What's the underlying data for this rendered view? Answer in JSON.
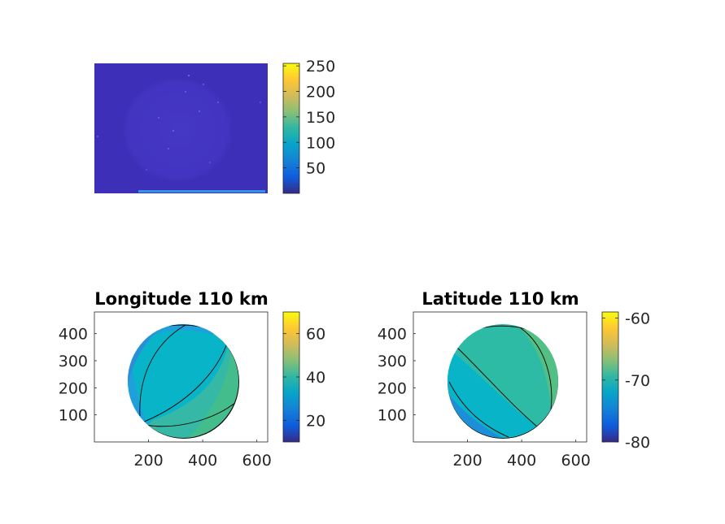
{
  "colors": {
    "colormap": "parula",
    "background": "#ffffff",
    "axis": "#262626",
    "image_fill": "#3e2fb8"
  },
  "chart_data": [
    {
      "type": "heatmap",
      "title": "",
      "xlabel": "",
      "ylabel": "",
      "axes_visible": false,
      "image_width": 640,
      "image_height": 480,
      "colorbar": {
        "clim": [
          0,
          255
        ],
        "ticks": [
          50,
          100,
          150,
          200,
          250
        ]
      },
      "description_values": {
        "background_level": 18,
        "disk_level": 30
      }
    },
    {
      "type": "heatmap",
      "title": "Longitude 110 km",
      "xlabel": "",
      "ylabel": "",
      "xlim": [
        0,
        640
      ],
      "ylim": [
        0,
        480
      ],
      "xticks": [
        200,
        400,
        600
      ],
      "yticks": [
        100,
        200,
        300,
        400
      ],
      "colorbar": {
        "clim": [
          10,
          70
        ],
        "ticks": [
          20,
          40,
          60
        ]
      },
      "disk_center": [
        320,
        240
      ],
      "disk_radius": 230,
      "band_values": [
        22,
        28,
        34,
        44,
        52
      ]
    },
    {
      "type": "heatmap",
      "title": "Latitude 110 km",
      "xlabel": "",
      "ylabel": "",
      "xlim": [
        0,
        640
      ],
      "ylim": [
        0,
        480
      ],
      "xticks": [
        200,
        400,
        600
      ],
      "yticks": [
        100,
        200,
        300,
        400
      ],
      "colorbar": {
        "clim": [
          -80,
          -59
        ],
        "ticks": [
          -60,
          -70,
          -80
        ]
      },
      "disk_center": [
        320,
        240
      ],
      "disk_radius": 230,
      "band_values": [
        -76,
        -73,
        -70.5,
        -68.5,
        -66
      ]
    }
  ]
}
